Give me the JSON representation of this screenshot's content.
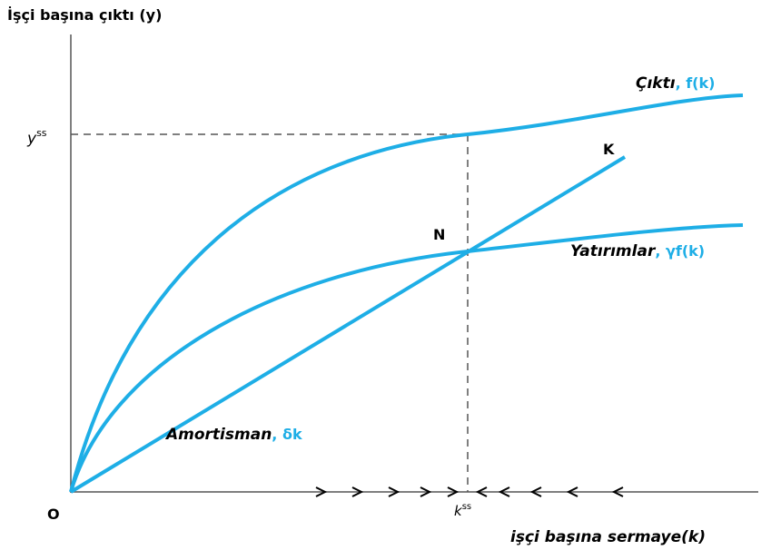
{
  "axes": {
    "y_label": "İşçi başına çıktı (y)",
    "x_label": "işçi başına sermaye",
    "x_label_suffix": "(k)",
    "origin": "O"
  },
  "steady_state": {
    "y_base": "y",
    "y_sup": "ss",
    "k_base": "k",
    "k_sup": "ss"
  },
  "curves": {
    "output": {
      "name": "Çıktı",
      "formula": ", f(k)"
    },
    "investment": {
      "name": "Yatırımlar",
      "formula": ", γf(k)"
    },
    "depreciation": {
      "name": "Amortisman",
      "formula": ", δk"
    }
  },
  "points": {
    "intersection": "N",
    "line_end": "K"
  }
}
